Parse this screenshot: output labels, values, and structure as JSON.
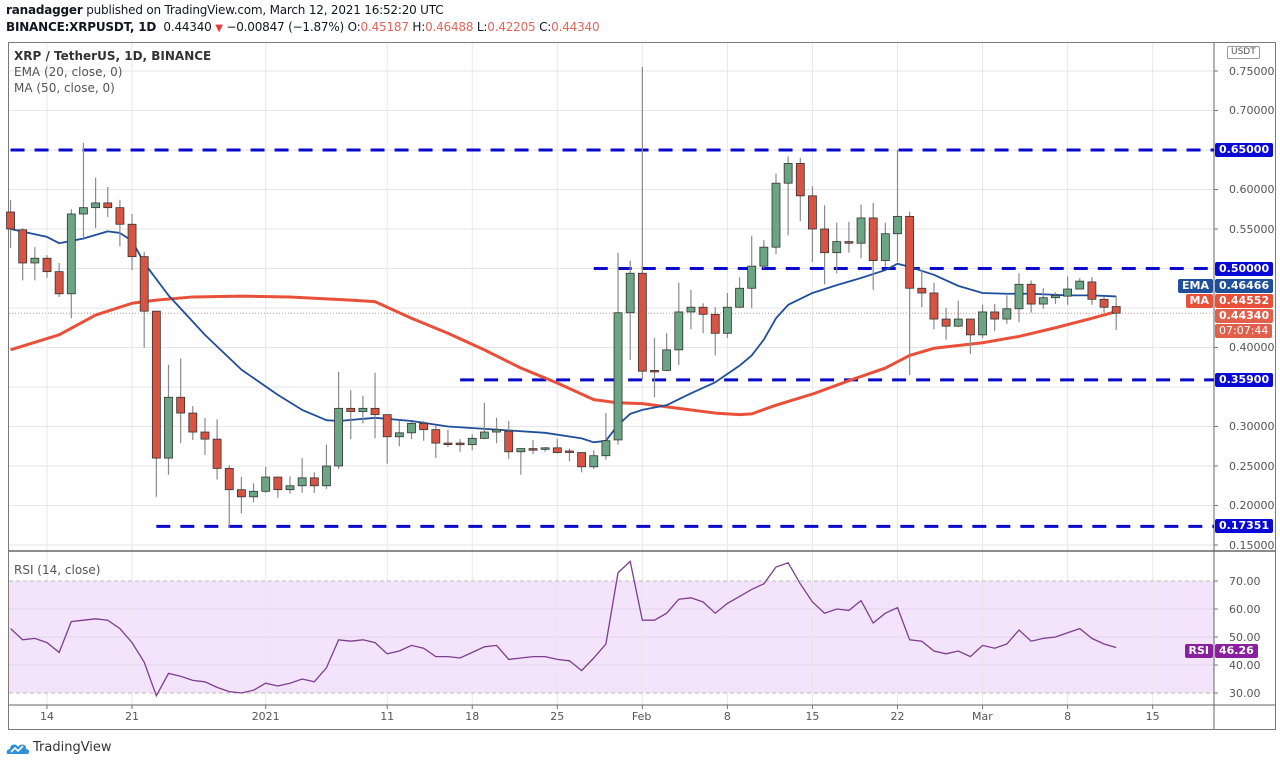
{
  "header": {
    "author": "ranadagger",
    "published": " published on TradingView.com, March 12, 2021 16:52:20 UTC",
    "symbol": "BINANCE:XRPUSDT, 1D",
    "last": "0.44340",
    "change": "−0.00847 (−1.87%)",
    "o_label": "O:",
    "o": "0.45187",
    "h_label": "H:",
    "h": "0.46488",
    "l_label": "L:",
    "l": "0.42205",
    "c_label": "C:",
    "c": "0.44340"
  },
  "legend": {
    "title": "XRP / TetherUS, 1D, BINANCE",
    "ema": "EMA (20, close, 0)",
    "ma": "MA (50, close, 0)",
    "rsi": "RSI (14, close)"
  },
  "currency": "USDT",
  "badges": {
    "level_650": "0.65000",
    "level_500": "0.50000",
    "ema_tag": "EMA",
    "ema_value": "0.46466",
    "ma_tag": "MA",
    "ma_value": "0.44552",
    "last_price": "0.44340",
    "countdown": "07:07:44",
    "level_359": "0.35900",
    "level_173": "0.17351",
    "rsi_tag": "RSI",
    "rsi_value": "46.26"
  },
  "footer": {
    "brand": "TradingView"
  },
  "colors": {
    "up": "#6ba583",
    "down": "#d75442",
    "ema": "#1f4e9b",
    "ma": "#e8503a",
    "levels": "#0a0acc",
    "rsi": "#7e3d8f",
    "rsi_band": "#f3e3fb"
  },
  "chart_data": {
    "type": "candlestick",
    "title": "XRP / TetherUS, 1D, BINANCE",
    "start_date": "2020-12-11",
    "ohlc_fields": [
      "open",
      "high",
      "low",
      "close"
    ],
    "ohlc": [
      [
        0.5715,
        0.587,
        0.526,
        0.55
      ],
      [
        0.549,
        0.551,
        0.485,
        0.507
      ],
      [
        0.507,
        0.527,
        0.485,
        0.513
      ],
      [
        0.513,
        0.517,
        0.488,
        0.496
      ],
      [
        0.496,
        0.507,
        0.464,
        0.468
      ],
      [
        0.468,
        0.575,
        0.437,
        0.569
      ],
      [
        0.569,
        0.659,
        0.536,
        0.577
      ],
      [
        0.577,
        0.615,
        0.551,
        0.583
      ],
      [
        0.583,
        0.603,
        0.565,
        0.577
      ],
      [
        0.577,
        0.587,
        0.528,
        0.556
      ],
      [
        0.556,
        0.569,
        0.498,
        0.515
      ],
      [
        0.515,
        0.521,
        0.4,
        0.446
      ],
      [
        0.446,
        0.446,
        0.211,
        0.26
      ],
      [
        0.26,
        0.378,
        0.239,
        0.337
      ],
      [
        0.337,
        0.386,
        0.279,
        0.317
      ],
      [
        0.317,
        0.326,
        0.283,
        0.293
      ],
      [
        0.293,
        0.311,
        0.264,
        0.284
      ],
      [
        0.284,
        0.309,
        0.233,
        0.247
      ],
      [
        0.247,
        0.251,
        0.172,
        0.22
      ],
      [
        0.22,
        0.236,
        0.19,
        0.211
      ],
      [
        0.211,
        0.228,
        0.204,
        0.218
      ],
      [
        0.218,
        0.249,
        0.216,
        0.236
      ],
      [
        0.236,
        0.236,
        0.21,
        0.22
      ],
      [
        0.22,
        0.237,
        0.215,
        0.225
      ],
      [
        0.225,
        0.26,
        0.216,
        0.235
      ],
      [
        0.235,
        0.242,
        0.216,
        0.225
      ],
      [
        0.225,
        0.277,
        0.221,
        0.25
      ],
      [
        0.25,
        0.369,
        0.246,
        0.323
      ],
      [
        0.323,
        0.346,
        0.284,
        0.319
      ],
      [
        0.319,
        0.339,
        0.304,
        0.323
      ],
      [
        0.323,
        0.368,
        0.285,
        0.315
      ],
      [
        0.315,
        0.315,
        0.253,
        0.287
      ],
      [
        0.287,
        0.307,
        0.275,
        0.292
      ],
      [
        0.292,
        0.306,
        0.284,
        0.304
      ],
      [
        0.304,
        0.307,
        0.282,
        0.296
      ],
      [
        0.296,
        0.301,
        0.26,
        0.279
      ],
      [
        0.279,
        0.296,
        0.274,
        0.278
      ],
      [
        0.279,
        0.284,
        0.268,
        0.277
      ],
      [
        0.277,
        0.29,
        0.27,
        0.285
      ],
      [
        0.285,
        0.33,
        0.284,
        0.293
      ],
      [
        0.293,
        0.311,
        0.279,
        0.296
      ],
      [
        0.294,
        0.307,
        0.259,
        0.268
      ],
      [
        0.268,
        0.272,
        0.239,
        0.272
      ],
      [
        0.272,
        0.283,
        0.265,
        0.27
      ],
      [
        0.272,
        0.274,
        0.268,
        0.273
      ],
      [
        0.273,
        0.284,
        0.266,
        0.267
      ],
      [
        0.269,
        0.272,
        0.256,
        0.268
      ],
      [
        0.267,
        0.267,
        0.242,
        0.249
      ],
      [
        0.249,
        0.27,
        0.246,
        0.263
      ],
      [
        0.263,
        0.317,
        0.258,
        0.282
      ],
      [
        0.283,
        0.52,
        0.277,
        0.444
      ],
      [
        0.444,
        0.51,
        0.384,
        0.494
      ],
      [
        0.494,
        0.755,
        0.359,
        0.37
      ],
      [
        0.371,
        0.412,
        0.337,
        0.37
      ],
      [
        0.371,
        0.418,
        0.37,
        0.397
      ],
      [
        0.397,
        0.482,
        0.378,
        0.445
      ],
      [
        0.445,
        0.473,
        0.423,
        0.451
      ],
      [
        0.451,
        0.456,
        0.418,
        0.442
      ],
      [
        0.442,
        0.451,
        0.39,
        0.418
      ],
      [
        0.418,
        0.469,
        0.412,
        0.451
      ],
      [
        0.451,
        0.489,
        0.45,
        0.475
      ],
      [
        0.475,
        0.541,
        0.45,
        0.503
      ],
      [
        0.503,
        0.536,
        0.5,
        0.527
      ],
      [
        0.527,
        0.62,
        0.518,
        0.608
      ],
      [
        0.608,
        0.642,
        0.542,
        0.633
      ],
      [
        0.633,
        0.64,
        0.56,
        0.592
      ],
      [
        0.592,
        0.604,
        0.508,
        0.55
      ],
      [
        0.55,
        0.58,
        0.48,
        0.52
      ],
      [
        0.52,
        0.558,
        0.494,
        0.534
      ],
      [
        0.534,
        0.559,
        0.52,
        0.532
      ],
      [
        0.532,
        0.581,
        0.513,
        0.564
      ],
      [
        0.564,
        0.583,
        0.473,
        0.51
      ],
      [
        0.51,
        0.558,
        0.502,
        0.544
      ],
      [
        0.544,
        0.65,
        0.508,
        0.566
      ],
      [
        0.566,
        0.572,
        0.365,
        0.475
      ],
      [
        0.475,
        0.498,
        0.451,
        0.469
      ],
      [
        0.469,
        0.482,
        0.423,
        0.436
      ],
      [
        0.436,
        0.45,
        0.41,
        0.427
      ],
      [
        0.427,
        0.459,
        0.426,
        0.436
      ],
      [
        0.436,
        0.436,
        0.392,
        0.416
      ],
      [
        0.416,
        0.454,
        0.412,
        0.445
      ],
      [
        0.445,
        0.455,
        0.421,
        0.436
      ],
      [
        0.436,
        0.466,
        0.43,
        0.449
      ],
      [
        0.449,
        0.494,
        0.432,
        0.48
      ],
      [
        0.48,
        0.485,
        0.444,
        0.455
      ],
      [
        0.455,
        0.475,
        0.449,
        0.463
      ],
      [
        0.463,
        0.47,
        0.455,
        0.466
      ],
      [
        0.465,
        0.49,
        0.454,
        0.474
      ],
      [
        0.474,
        0.488,
        0.474,
        0.484
      ],
      [
        0.483,
        0.489,
        0.454,
        0.461
      ],
      [
        0.461,
        0.464,
        0.444,
        0.451
      ],
      [
        0.45187,
        0.46488,
        0.42205,
        0.4434
      ]
    ],
    "ema20": [
      [
        "2020-12-11",
        0.55
      ],
      [
        "2020-12-14",
        0.54
      ],
      [
        "2020-12-15",
        0.532
      ],
      [
        "2020-12-17",
        0.538
      ],
      [
        "2020-12-19",
        0.547
      ],
      [
        "2020-12-20",
        0.545
      ],
      [
        "2020-12-21",
        0.535
      ],
      [
        "2020-12-22",
        0.507
      ],
      [
        "2020-12-24",
        0.466
      ],
      [
        "2020-12-27",
        0.416
      ],
      [
        "2020-12-30",
        0.372
      ],
      [
        "2021-01-02",
        0.34
      ],
      [
        "2021-01-04",
        0.321
      ],
      [
        "2021-01-06",
        0.308
      ],
      [
        "2021-01-07",
        0.307
      ],
      [
        "2021-01-10",
        0.311
      ],
      [
        "2021-01-13",
        0.307
      ],
      [
        "2021-01-16",
        0.3
      ],
      [
        "2021-01-20",
        0.296
      ],
      [
        "2021-01-24",
        0.292
      ],
      [
        "2021-01-27",
        0.285
      ],
      [
        "2021-01-28",
        0.28
      ],
      [
        "2021-01-29",
        0.282
      ],
      [
        "2021-01-30",
        0.302
      ],
      [
        "2021-01-31",
        0.316
      ],
      [
        "2021-02-01",
        0.321
      ],
      [
        "2021-02-03",
        0.327
      ],
      [
        "2021-02-05",
        0.342
      ],
      [
        "2021-02-07",
        0.356
      ],
      [
        "2021-02-09",
        0.377
      ],
      [
        "2021-02-10",
        0.39
      ],
      [
        "2021-02-11",
        0.41
      ],
      [
        "2021-02-12",
        0.437
      ],
      [
        "2021-02-13",
        0.454
      ],
      [
        "2021-02-15",
        0.469
      ],
      [
        "2021-02-17",
        0.479
      ],
      [
        "2021-02-19",
        0.488
      ],
      [
        "2021-02-21",
        0.498
      ],
      [
        "2021-02-22",
        0.506
      ],
      [
        "2021-02-23",
        0.502
      ],
      [
        "2021-02-25",
        0.492
      ],
      [
        "2021-02-27",
        0.478
      ],
      [
        "2021-03-01",
        0.469
      ],
      [
        "2021-03-03",
        0.468
      ],
      [
        "2021-03-05",
        0.468
      ],
      [
        "2021-03-08",
        0.466
      ],
      [
        "2021-03-10",
        0.466
      ],
      [
        "2021-03-12",
        0.46466
      ]
    ],
    "ma50": [
      [
        "2020-12-11",
        0.397
      ],
      [
        "2020-12-15",
        0.416
      ],
      [
        "2020-12-18",
        0.441
      ],
      [
        "2020-12-21",
        0.456
      ],
      [
        "2020-12-23",
        0.46
      ],
      [
        "2020-12-26",
        0.464
      ],
      [
        "2020-12-30",
        0.465
      ],
      [
        "2021-01-03",
        0.464
      ],
      [
        "2021-01-08",
        0.46
      ],
      [
        "2021-01-10",
        0.458
      ],
      [
        "2021-01-13",
        0.437
      ],
      [
        "2021-01-16",
        0.418
      ],
      [
        "2021-01-19",
        0.397
      ],
      [
        "2021-01-22",
        0.374
      ],
      [
        "2021-01-25",
        0.355
      ],
      [
        "2021-01-28",
        0.334
      ],
      [
        "2021-01-30",
        0.33
      ],
      [
        "2021-02-01",
        0.329
      ],
      [
        "2021-02-04",
        0.323
      ],
      [
        "2021-02-07",
        0.317
      ],
      [
        "2021-02-09",
        0.315
      ],
      [
        "2021-02-10",
        0.316
      ],
      [
        "2021-02-12",
        0.327
      ],
      [
        "2021-02-15",
        0.341
      ],
      [
        "2021-02-18",
        0.358
      ],
      [
        "2021-02-21",
        0.374
      ],
      [
        "2021-02-23",
        0.39
      ],
      [
        "2021-02-25",
        0.399
      ],
      [
        "2021-03-01",
        0.406
      ],
      [
        "2021-03-04",
        0.414
      ],
      [
        "2021-03-07",
        0.425
      ],
      [
        "2021-03-10",
        0.437
      ],
      [
        "2021-03-12",
        0.44552
      ]
    ],
    "levels": [
      {
        "value": 0.65,
        "from": "2020-12-11"
      },
      {
        "value": 0.5,
        "from": "2021-01-28"
      },
      {
        "value": 0.359,
        "from": "2021-01-17"
      },
      {
        "value": 0.17351,
        "from": "2020-12-23"
      }
    ],
    "rsi14": [
      53,
      49,
      49.5,
      48,
      44.5,
      55.5,
      56,
      56.5,
      56,
      53,
      48,
      41,
      29,
      37,
      36,
      34.5,
      34,
      32,
      30.5,
      30,
      31,
      33.5,
      32.5,
      33.5,
      35,
      34,
      39,
      49,
      48.5,
      49,
      48,
      44,
      45,
      47,
      46,
      43,
      43,
      42.5,
      44.5,
      46.5,
      47,
      42,
      42.5,
      43,
      43,
      42,
      41.5,
      38,
      42.5,
      47.5,
      73,
      77,
      56,
      56,
      58.5,
      63.5,
      64,
      62.5,
      58.5,
      62,
      64.5,
      67,
      69,
      75,
      76.5,
      69,
      62.5,
      58.5,
      60,
      59.5,
      63,
      55,
      58.5,
      60.5,
      49,
      48.5,
      45,
      44,
      45,
      43,
      47,
      46,
      47.5,
      52.5,
      48.5,
      49.5,
      50,
      51.5,
      53,
      49.5,
      47.5,
      46.26
    ],
    "rsi_bands": [
      70,
      30
    ],
    "ylim": [
      0.15,
      0.75
    ],
    "price_ticks": [
      "0.75000",
      "0.70000",
      "0.60000",
      "0.55000",
      "0.40000",
      "0.30000",
      "0.25000",
      "0.20000",
      "0.15000"
    ],
    "rsi_ticks": [
      "70.00",
      "60.00",
      "50.00",
      "40.00",
      "30.00"
    ],
    "x_ticks": [
      [
        "2020-12-14",
        "14"
      ],
      [
        "2020-12-21",
        "21"
      ],
      [
        "2021-01-01",
        "2021"
      ],
      [
        "2021-01-11",
        "11"
      ],
      [
        "2021-01-18",
        "18"
      ],
      [
        "2021-01-25",
        "25"
      ],
      [
        "2021-02-01",
        "Feb"
      ],
      [
        "2021-02-08",
        "8"
      ],
      [
        "2021-02-15",
        "15"
      ],
      [
        "2021-02-22",
        "22"
      ],
      [
        "2021-03-01",
        "Mar"
      ],
      [
        "2021-03-08",
        "8"
      ],
      [
        "2021-03-15",
        "15"
      ]
    ],
    "grid": true
  }
}
